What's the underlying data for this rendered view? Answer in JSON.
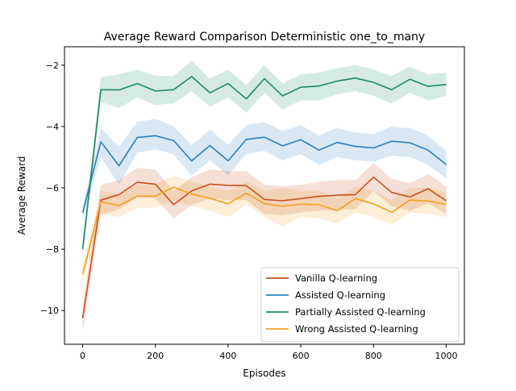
{
  "chart_data": {
    "type": "line",
    "title": "Average Reward Comparison Deterministic one_to_many",
    "xlabel": "Episodes",
    "ylabel": "Average Reward",
    "xlim": [
      -50,
      1050
    ],
    "ylim": [
      -11.1,
      -1.4
    ],
    "xticks": [
      0,
      200,
      400,
      600,
      800,
      1000
    ],
    "yticks": [
      -10,
      -8,
      -6,
      -4,
      -2
    ],
    "xtick_labels": [
      "0",
      "200",
      "400",
      "600",
      "800",
      "1000"
    ],
    "ytick_labels": [
      "−10",
      "−8",
      "−6",
      "−4",
      "−2"
    ],
    "grid": false,
    "legend_position": "lower-right",
    "x": [
      0,
      50,
      100,
      150,
      200,
      250,
      300,
      350,
      400,
      450,
      500,
      550,
      600,
      650,
      700,
      750,
      800,
      850,
      900,
      950,
      1000
    ],
    "series": [
      {
        "name": "Vanilla Q-learning",
        "color": "#c8501e",
        "values": [
          -10.25,
          -6.4,
          -6.22,
          -5.82,
          -5.88,
          -6.55,
          -6.1,
          -5.88,
          -5.92,
          -5.93,
          -6.38,
          -6.42,
          -6.35,
          -6.28,
          -6.24,
          -6.22,
          -5.65,
          -6.15,
          -6.3,
          -6.03,
          -6.42
        ],
        "lower": [
          -10.7,
          -6.9,
          -6.7,
          -6.3,
          -6.35,
          -7.0,
          -6.55,
          -6.35,
          -6.4,
          -6.4,
          -6.85,
          -6.9,
          -6.8,
          -6.75,
          -6.7,
          -6.7,
          -6.1,
          -6.6,
          -6.75,
          -6.5,
          -6.85
        ],
        "upper": [
          -9.8,
          -5.9,
          -5.75,
          -5.35,
          -5.4,
          -6.1,
          -5.65,
          -5.4,
          -5.45,
          -5.45,
          -5.9,
          -5.95,
          -5.9,
          -5.8,
          -5.75,
          -5.75,
          -5.2,
          -5.7,
          -5.85,
          -5.55,
          -5.95
        ]
      },
      {
        "name": "Assisted Q-learning",
        "color": "#2a7fbf",
        "values": [
          -6.82,
          -4.5,
          -5.28,
          -4.36,
          -4.3,
          -4.46,
          -5.12,
          -4.62,
          -5.12,
          -4.42,
          -4.35,
          -4.63,
          -4.43,
          -4.77,
          -4.52,
          -4.65,
          -4.7,
          -4.48,
          -4.53,
          -4.77,
          -5.24
        ],
        "lower": [
          -7.0,
          -5.0,
          -5.9,
          -4.85,
          -4.75,
          -4.9,
          -5.6,
          -5.1,
          -5.6,
          -4.9,
          -4.8,
          -5.1,
          -4.9,
          -5.25,
          -5.0,
          -5.1,
          -5.15,
          -4.95,
          -5.0,
          -5.25,
          -5.7
        ],
        "upper": [
          -6.6,
          -4.05,
          -4.65,
          -3.85,
          -3.75,
          -4.0,
          -4.6,
          -4.1,
          -4.6,
          -3.95,
          -3.85,
          -4.15,
          -3.95,
          -4.3,
          -4.05,
          -4.2,
          -4.25,
          -4.0,
          -4.05,
          -4.3,
          -4.8
        ]
      },
      {
        "name": "Partially Assisted Q-learning",
        "color": "#1a8a6a",
        "values": [
          -8.0,
          -2.8,
          -2.81,
          -2.6,
          -2.84,
          -2.8,
          -2.37,
          -2.9,
          -2.6,
          -3.1,
          -2.44,
          -3.0,
          -2.72,
          -2.68,
          -2.52,
          -2.42,
          -2.56,
          -2.8,
          -2.46,
          -2.69,
          -2.63
        ],
        "lower": [
          -8.3,
          -3.2,
          -3.4,
          -3.05,
          -3.3,
          -3.25,
          -2.85,
          -3.35,
          -3.05,
          -3.55,
          -2.9,
          -3.45,
          -3.15,
          -3.15,
          -2.95,
          -2.85,
          -3.0,
          -3.25,
          -2.9,
          -3.15,
          -3.0
        ],
        "upper": [
          -7.7,
          -2.4,
          -2.3,
          -2.15,
          -2.35,
          -2.35,
          -1.85,
          -2.45,
          -2.15,
          -2.65,
          -2.0,
          -2.6,
          -2.3,
          -2.25,
          -2.1,
          -2.0,
          -2.15,
          -2.35,
          -2.05,
          -2.3,
          -2.25
        ]
      },
      {
        "name": "Wrong Assisted Q-learning",
        "color": "#f0a020",
        "values": [
          -8.82,
          -6.45,
          -6.58,
          -6.27,
          -6.27,
          -5.98,
          -6.2,
          -6.34,
          -6.52,
          -6.17,
          -6.52,
          -6.6,
          -6.53,
          -6.55,
          -6.75,
          -6.35,
          -6.52,
          -6.8,
          -6.4,
          -6.43,
          -6.54
        ],
        "lower": [
          -9.1,
          -6.85,
          -6.95,
          -6.65,
          -6.65,
          -6.4,
          -6.6,
          -6.75,
          -6.95,
          -6.55,
          -6.95,
          -7.25,
          -6.95,
          -7.0,
          -7.15,
          -6.8,
          -6.95,
          -7.2,
          -6.8,
          -6.85,
          -6.95
        ],
        "upper": [
          -8.5,
          -6.1,
          -6.2,
          -5.9,
          -5.9,
          -5.6,
          -5.8,
          -5.95,
          -6.1,
          -5.8,
          -6.1,
          -6.0,
          -6.1,
          -6.1,
          -6.35,
          -5.95,
          -6.1,
          -6.4,
          -6.0,
          -6.0,
          -6.15
        ]
      }
    ]
  }
}
